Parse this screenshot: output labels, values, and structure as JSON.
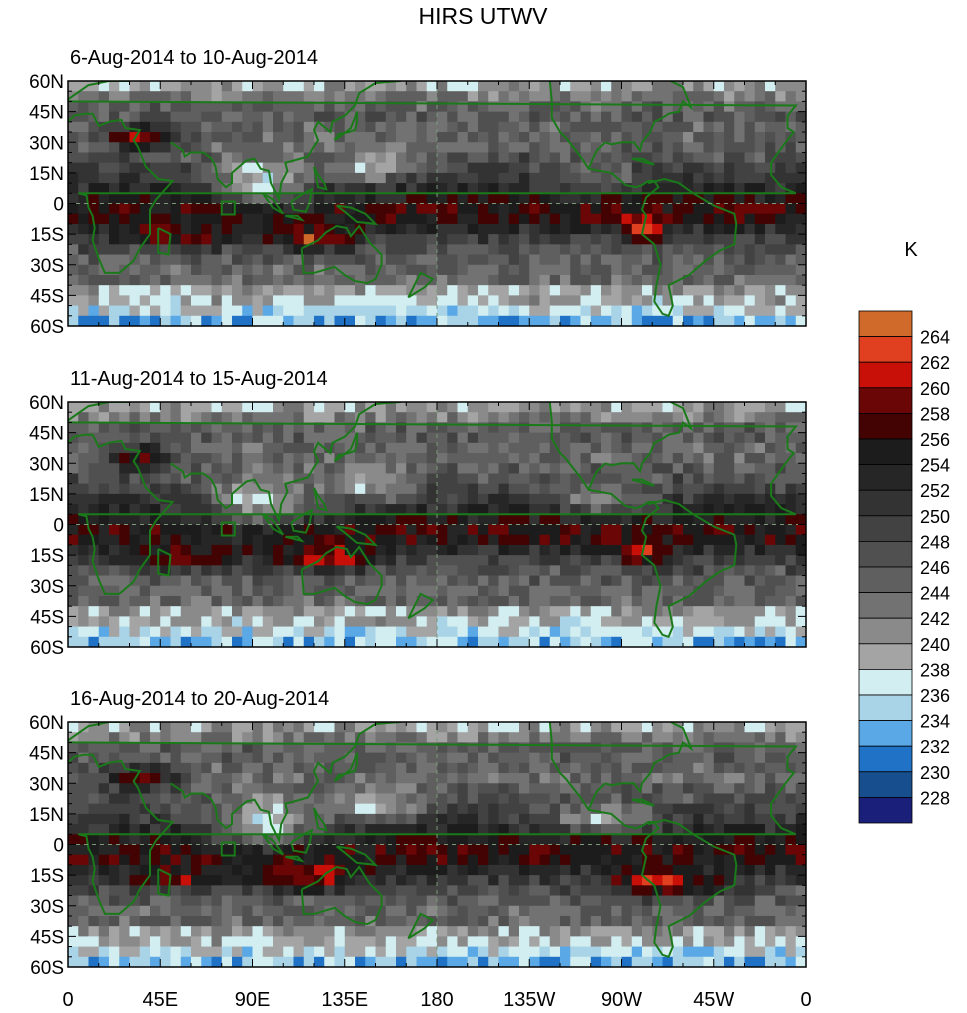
{
  "title": "HIRS UTWV",
  "units": "K",
  "panels": [
    {
      "subtitle": "6-Aug-2014 to 10-Aug-2014"
    },
    {
      "subtitle": "11-Aug-2014 to 15-Aug-2014"
    },
    {
      "subtitle": "16-Aug-2014 to 20-Aug-2014"
    }
  ],
  "lat_labels": [
    "60N",
    "45N",
    "30N",
    "15N",
    "0",
    "15S",
    "30S",
    "45S",
    "60S"
  ],
  "lon_labels": [
    "0",
    "45E",
    "90E",
    "135E",
    "180",
    "135W",
    "90W",
    "45W",
    "0"
  ],
  "colorbar_labels": [
    "264",
    "262",
    "260",
    "258",
    "256",
    "254",
    "252",
    "250",
    "248",
    "246",
    "244",
    "242",
    "240",
    "238",
    "236",
    "234",
    "232",
    "230",
    "228"
  ],
  "colorbar_colors": [
    "#d06a2a",
    "#e0401f",
    "#c80f08",
    "#6a0606",
    "#430303",
    "#1c1c1c",
    "#262626",
    "#333333",
    "#424242",
    "#505050",
    "#5f5f5f",
    "#727272",
    "#8a8a8a",
    "#a4a4a4",
    "#d3eef1",
    "#a9d3e6",
    "#5aa9e6",
    "#1f72c6",
    "#174f8e",
    "#1a1f7a"
  ],
  "colors": {
    "coastline": "#1a7a1a",
    "grid": "#7a9a7a"
  }
}
